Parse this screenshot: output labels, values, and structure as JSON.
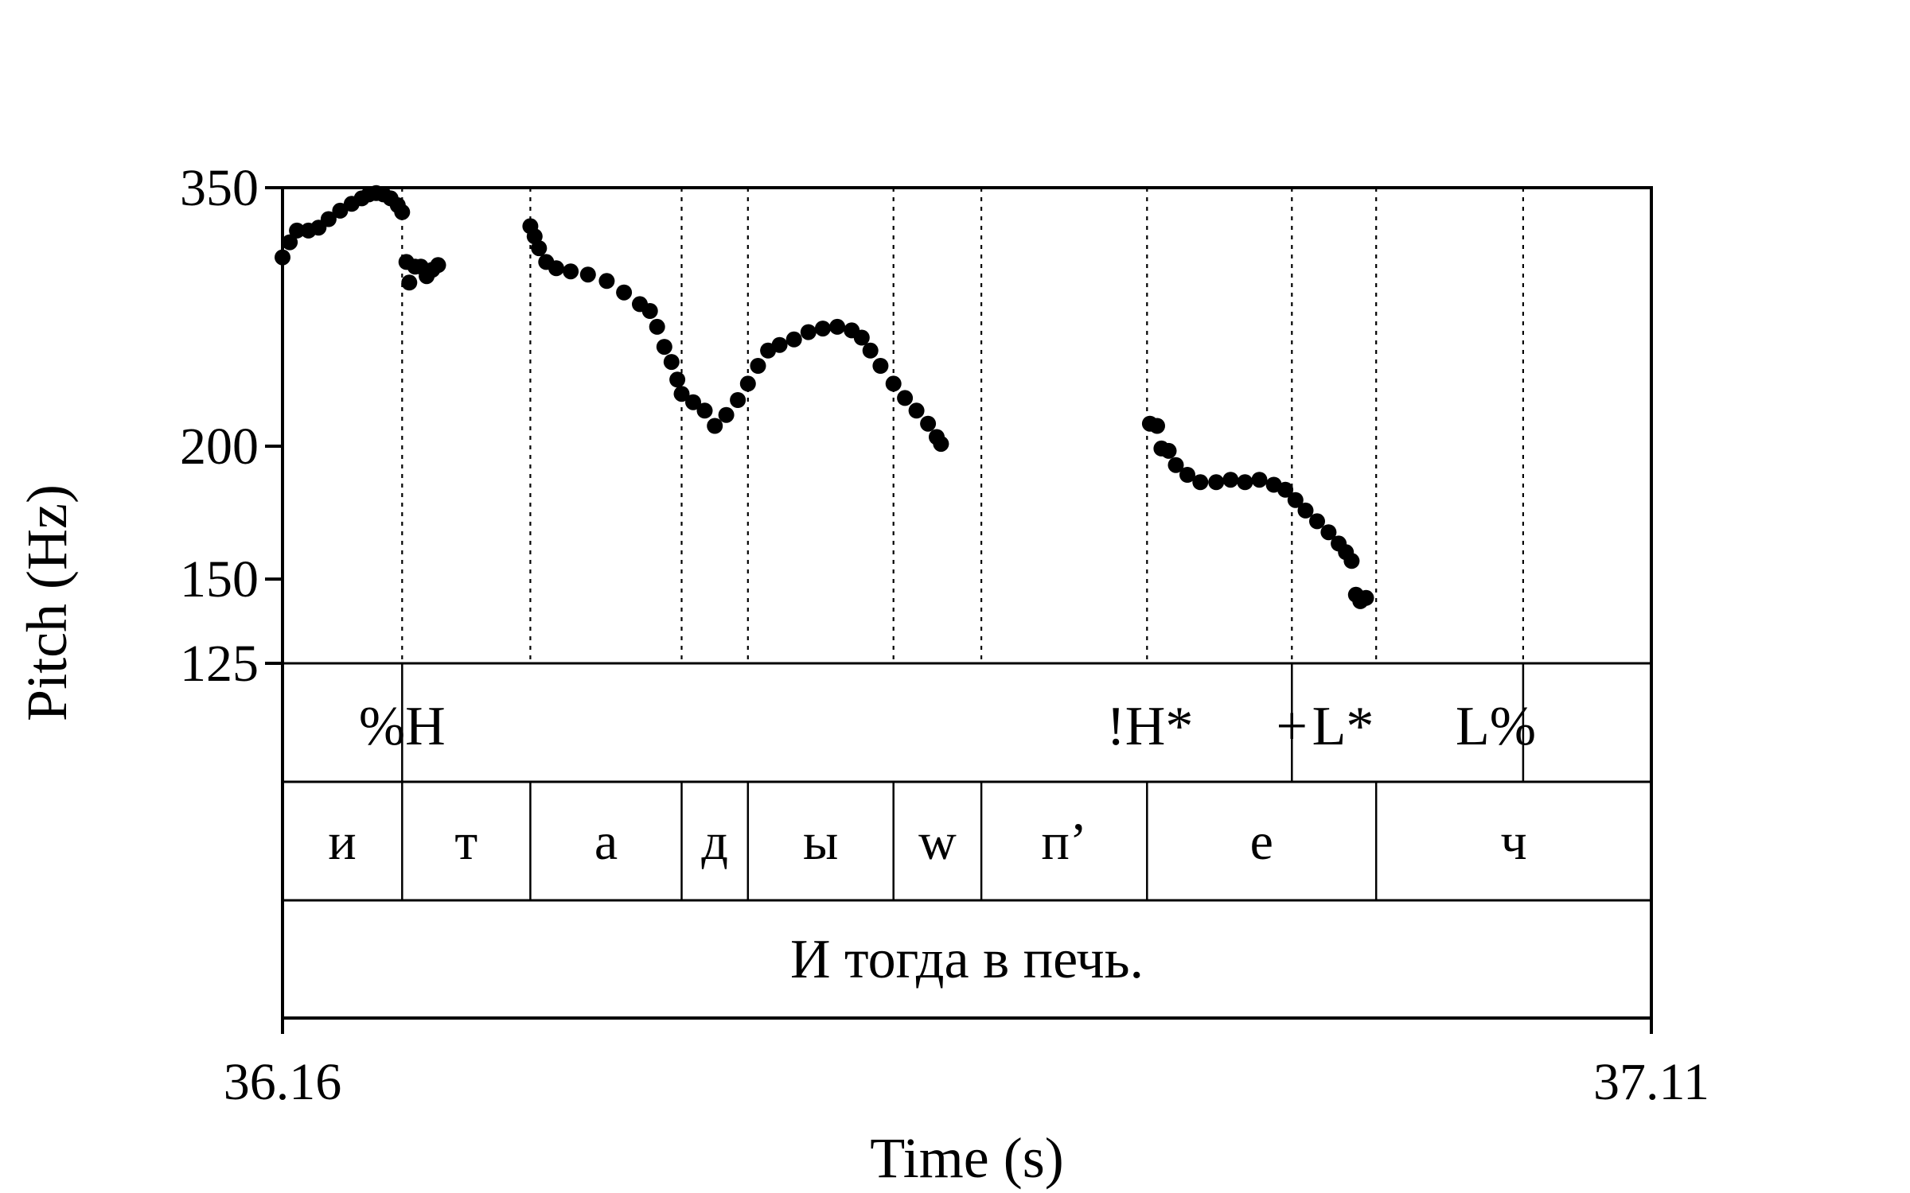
{
  "chart_data": {
    "type": "scatter",
    "xlabel": "Time (s)",
    "ylabel": "Pitch (Hz)",
    "xlim": [
      36.16,
      37.11
    ],
    "xlim_labels": [
      "36.16",
      "37.11"
    ],
    "ylim": [
      125,
      350
    ],
    "y_scale": "log",
    "y_ticks": [
      350,
      200,
      150,
      125
    ],
    "tiers": {
      "tones": [
        {
          "label": "%H",
          "t": 36.243
        },
        {
          "label": "!H*",
          "t": 36.762
        },
        {
          "label": "+",
          "t": 36.8605
        },
        {
          "label": "L*",
          "t": 36.896
        },
        {
          "label": "L%",
          "t": 37.002
        }
      ],
      "tone_points": [
        36.243,
        36.8605,
        37.021
      ],
      "segments": [
        {
          "label": "и",
          "start": 36.16,
          "end": 36.243
        },
        {
          "label": "т",
          "start": 36.243,
          "end": 36.332
        },
        {
          "label": "а",
          "start": 36.332,
          "end": 36.437
        },
        {
          "label": "д",
          "start": 36.437,
          "end": 36.483
        },
        {
          "label": "ы",
          "start": 36.483,
          "end": 36.584
        },
        {
          "label": "w",
          "start": 36.584,
          "end": 36.645
        },
        {
          "label": "п’",
          "start": 36.645,
          "end": 36.76
        },
        {
          "label": "е",
          "start": 36.76,
          "end": 36.919
        },
        {
          "label": "ч",
          "start": 36.919,
          "end": 37.11
        }
      ],
      "orthography": [
        {
          "label": "И тогда в печь.",
          "start": 36.16,
          "end": 37.11
        }
      ]
    },
    "series": [
      {
        "values": [
          [
            36.16,
            301
          ],
          [
            36.165,
            311
          ],
          [
            36.17,
            319
          ],
          [
            36.178,
            319
          ],
          [
            36.185,
            321
          ],
          [
            36.192,
            327
          ],
          [
            36.2,
            333
          ],
          [
            36.208,
            338
          ],
          [
            36.215,
            342
          ],
          [
            36.22,
            345
          ],
          [
            36.225,
            346
          ],
          [
            36.23,
            345
          ],
          [
            36.235,
            342
          ],
          [
            36.24,
            337
          ],
          [
            36.243,
            332
          ],
          [
            36.246,
            298
          ],
          [
            36.248,
            285
          ],
          [
            36.252,
            295
          ],
          [
            36.256,
            295
          ],
          [
            36.26,
            289
          ],
          [
            36.264,
            293
          ],
          [
            36.268,
            296
          ],
          [
            36.332,
            322
          ],
          [
            36.335,
            315
          ],
          [
            36.338,
            307
          ],
          [
            36.343,
            298
          ],
          [
            36.35,
            294
          ],
          [
            36.36,
            292
          ],
          [
            36.372,
            290
          ],
          [
            36.385,
            286
          ],
          [
            36.397,
            279
          ],
          [
            36.408,
            272
          ],
          [
            36.415,
            268
          ],
          [
            36.42,
            259
          ],
          [
            36.425,
            248
          ],
          [
            36.43,
            240
          ],
          [
            36.434,
            231
          ],
          [
            36.437,
            224
          ],
          [
            36.445,
            220
          ],
          [
            36.453,
            216
          ],
          [
            36.46,
            209
          ],
          [
            36.468,
            214
          ],
          [
            36.476,
            221
          ],
          [
            36.483,
            229
          ],
          [
            36.49,
            238
          ],
          [
            36.497,
            246
          ],
          [
            36.505,
            249
          ],
          [
            36.515,
            252
          ],
          [
            36.525,
            256
          ],
          [
            36.535,
            258
          ],
          [
            36.545,
            259
          ],
          [
            36.555,
            257
          ],
          [
            36.562,
            253
          ],
          [
            36.568,
            246
          ],
          [
            36.575,
            238
          ],
          [
            36.584,
            229
          ],
          [
            36.592,
            222
          ],
          [
            36.6,
            216
          ],
          [
            36.608,
            210
          ],
          [
            36.614,
            204
          ],
          [
            36.617,
            201
          ],
          [
            36.762,
            210
          ],
          [
            36.767,
            209
          ],
          [
            36.77,
            199
          ],
          [
            36.775,
            198
          ],
          [
            36.78,
            192
          ],
          [
            36.788,
            188
          ],
          [
            36.797,
            185
          ],
          [
            36.808,
            185
          ],
          [
            36.818,
            186
          ],
          [
            36.828,
            185
          ],
          [
            36.838,
            186
          ],
          [
            36.848,
            184
          ],
          [
            36.856,
            182
          ],
          [
            36.863,
            178
          ],
          [
            36.87,
            174
          ],
          [
            36.878,
            170
          ],
          [
            36.886,
            166
          ],
          [
            36.893,
            162
          ],
          [
            36.898,
            159
          ],
          [
            36.902,
            156
          ],
          [
            36.905,
            145
          ],
          [
            36.908,
            143
          ],
          [
            36.912,
            144
          ]
        ]
      }
    ]
  }
}
